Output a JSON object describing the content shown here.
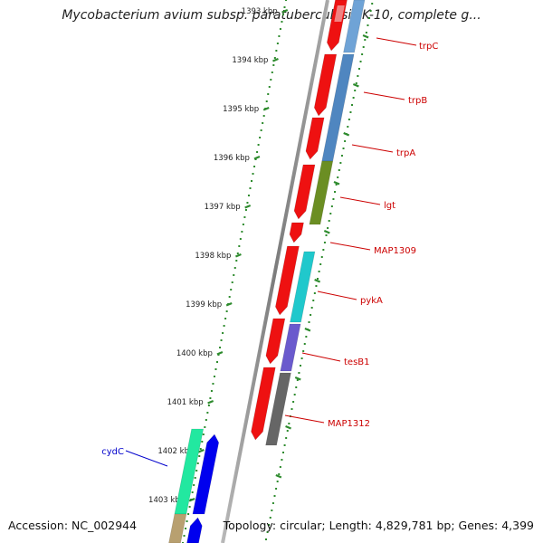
{
  "title": "Mycobacterium avium subsp. paratuberculosis K-10, complete g...",
  "footer": {
    "accession": "Accession: NC_002944",
    "stats": "Topology: circular; Length: 4,829,781 bp; Genes: 4,399"
  },
  "scale_labels": [
    "1393 kbp",
    "1394 kbp",
    "1395 kbp",
    "1396 kbp",
    "1397 kbp",
    "1398 kbp",
    "1399 kbp",
    "1400 kbp",
    "1401 kbp",
    "1402 kbp",
    "1403 kbp"
  ],
  "gene_labels": [
    {
      "text": "trpC",
      "color": "#cc0000"
    },
    {
      "text": "trpB",
      "color": "#cc0000"
    },
    {
      "text": "trpA",
      "color": "#cc0000"
    },
    {
      "text": "lgt",
      "color": "#cc0000"
    },
    {
      "text": "MAP1309",
      "color": "#cc0000"
    },
    {
      "text": "pykA",
      "color": "#cc0000"
    },
    {
      "text": "tesB1",
      "color": "#cc0000"
    },
    {
      "text": "MAP1312",
      "color": "#cc0000"
    },
    {
      "text": "cydC",
      "color": "#0000cc"
    }
  ],
  "colors": {
    "backbone": "#8a8a8a",
    "scale_dots": "#2e8b2e",
    "cds_forward": "#ee1111",
    "trpC": "#6fa3d6",
    "trpB": "#4f86c0",
    "trpA": "#4a7fb5",
    "lgt": "#6b8e23",
    "pykA": "#20c8cc",
    "tesB1": "#6a5acd",
    "MAP1312": "#666666",
    "cydC": "#22e8a0",
    "cyd_partner": "#0000ee"
  }
}
